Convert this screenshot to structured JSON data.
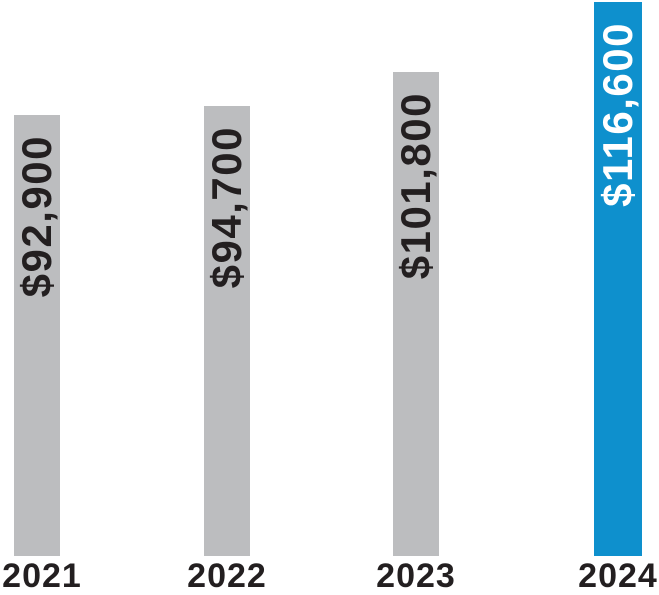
{
  "chart_data": {
    "type": "bar",
    "categories": [
      "2021",
      "2022",
      "2023",
      "2024"
    ],
    "values": [
      92900,
      94700,
      101800,
      116600
    ],
    "value_labels": [
      "$92,900",
      "$94,700",
      "$101,800",
      "$116,600"
    ],
    "title": "",
    "xlabel": "",
    "ylabel": "",
    "ylim": [
      0,
      116600
    ],
    "grid": false,
    "axes_visible": false,
    "legend": "none",
    "value_label_orientation": "rotated-90-bottom-to-top",
    "highlighted_category": "2024",
    "colors": {
      "default_bar": "#bcbdbf",
      "highlight_bar": "#0e90cd",
      "default_label_text": "#231f20",
      "highlight_label_text": "#ffffff",
      "axis_text": "#231f20",
      "background": "#ffffff"
    },
    "bar_fills": [
      "#bcbdbf",
      "#bcbdbf",
      "#bcbdbf",
      "#0e90cd"
    ],
    "bar_label_colors": [
      "#231f20",
      "#231f20",
      "#231f20",
      "#ffffff"
    ]
  }
}
